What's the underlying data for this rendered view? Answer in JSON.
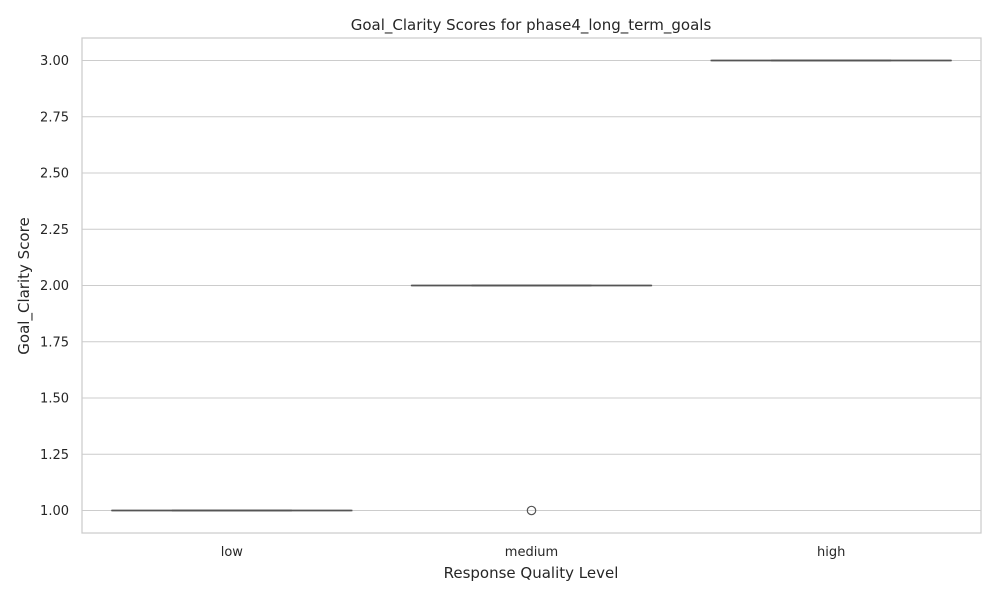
{
  "chart_data": {
    "type": "box",
    "title": "Goal_Clarity Scores for phase4_long_term_goals",
    "xlabel": "Response Quality Level",
    "ylabel": "Goal_Clarity Score",
    "categories": [
      "low",
      "medium",
      "high"
    ],
    "boxes": [
      {
        "category": "low",
        "min": 1.0,
        "q1": 1.0,
        "median": 1.0,
        "q3": 1.0,
        "max": 1.0,
        "outliers": []
      },
      {
        "category": "medium",
        "min": 2.0,
        "q1": 2.0,
        "median": 2.0,
        "q3": 2.0,
        "max": 2.0,
        "outliers": [
          1.0
        ]
      },
      {
        "category": "high",
        "min": 3.0,
        "q1": 3.0,
        "median": 3.0,
        "q3": 3.0,
        "max": 3.0,
        "outliers": []
      }
    ],
    "ylim": [
      0.9,
      3.1
    ],
    "yticks": [
      1.0,
      1.25,
      1.5,
      1.75,
      2.0,
      2.25,
      2.5,
      2.75,
      3.0
    ],
    "ytick_labels": [
      "1.00",
      "1.25",
      "1.50",
      "1.75",
      "2.00",
      "2.25",
      "2.50",
      "2.75",
      "3.00"
    ],
    "grid": true,
    "colors": {
      "box": "#555555",
      "grid": "#cccccc",
      "text": "#262626"
    }
  }
}
